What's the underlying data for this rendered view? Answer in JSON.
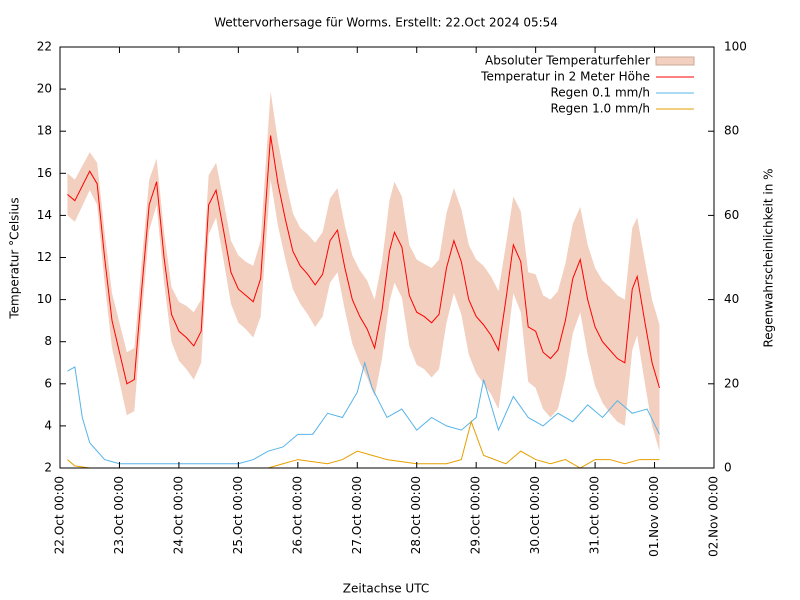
{
  "chart_data": {
    "type": "line",
    "title": "Wettervorhersage für Worms. Erstellt: 22.Oct 2024 05:54",
    "xlabel": "Zeitachse UTC",
    "ylabel": "Temperatur °Celsius",
    "y2label": "Regenwahrscheinlichkeit in %",
    "xlim": [
      "22.Oct 00:00",
      "02.Nov 00:00"
    ],
    "xticks": [
      "22.Oct 00:00",
      "23.Oct 00:00",
      "24.Oct 00:00",
      "25.Oct 00:00",
      "26.Oct 00:00",
      "27.Oct 00:00",
      "28.Oct 00:00",
      "29.Oct 00:00",
      "30.Oct 00:00",
      "31.Oct 00:00",
      "01.Nov 00:00",
      "02.Nov 00:00"
    ],
    "ylim": [
      2,
      22
    ],
    "yticks": [
      2,
      4,
      6,
      8,
      10,
      12,
      14,
      16,
      18,
      20,
      22
    ],
    "y2lim": [
      0,
      100
    ],
    "y2ticks": [
      0,
      20,
      40,
      60,
      80,
      100
    ],
    "legend": "upper right",
    "series": [
      {
        "name": "Temperatur in 2 Meter Höhe",
        "color": "#ff0000",
        "axis": "y",
        "error_name": "Absoluter Temperaturfehler",
        "error_color": "#f2cfbf",
        "x": [
          "22.Oct 03:00",
          "22.Oct 06:00",
          "22.Oct 12:00",
          "22.Oct 15:00",
          "22.Oct 18:00",
          "22.Oct 21:00",
          "23.Oct 00:00",
          "23.Oct 03:00",
          "23.Oct 06:00",
          "23.Oct 09:00",
          "23.Oct 12:00",
          "23.Oct 15:00",
          "23.Oct 18:00",
          "23.Oct 21:00",
          "24.Oct 00:00",
          "24.Oct 03:00",
          "24.Oct 06:00",
          "24.Oct 09:00",
          "24.Oct 12:00",
          "24.Oct 15:00",
          "24.Oct 18:00",
          "24.Oct 21:00",
          "25.Oct 00:00",
          "25.Oct 03:00",
          "25.Oct 06:00",
          "25.Oct 09:00",
          "25.Oct 13:00",
          "25.Oct 16:00",
          "25.Oct 19:00",
          "25.Oct 22:00",
          "26.Oct 01:00",
          "26.Oct 04:00",
          "26.Oct 07:00",
          "26.Oct 10:00",
          "26.Oct 13:00",
          "26.Oct 16:00",
          "26.Oct 19:00",
          "26.Oct 22:00",
          "27.Oct 01:00",
          "27.Oct 04:00",
          "27.Oct 07:00",
          "27.Oct 10:00",
          "27.Oct 13:00",
          "27.Oct 15:00",
          "27.Oct 18:00",
          "27.Oct 21:00",
          "28.Oct 00:00",
          "28.Oct 03:00",
          "28.Oct 06:00",
          "28.Oct 09:00",
          "28.Oct 12:00",
          "28.Oct 15:00",
          "28.Oct 18:00",
          "28.Oct 21:00",
          "29.Oct 00:00",
          "29.Oct 03:00",
          "29.Oct 06:00",
          "29.Oct 09:00",
          "29.Oct 12:00",
          "29.Oct 15:00",
          "29.Oct 18:00",
          "29.Oct 21:00",
          "30.Oct 00:00",
          "30.Oct 03:00",
          "30.Oct 06:00",
          "30.Oct 09:00",
          "30.Oct 12:00",
          "30.Oct 15:00",
          "30.Oct 18:00",
          "30.Oct 21:00",
          "31.Oct 00:00",
          "31.Oct 03:00",
          "31.Oct 06:00",
          "31.Oct 09:00",
          "31.Oct 12:00",
          "31.Oct 15:00",
          "31.Oct 17:00",
          "31.Oct 20:00",
          "31.Oct 23:00",
          "01.Nov 02:00"
        ],
        "values": [
          15.0,
          14.7,
          16.1,
          15.5,
          12.0,
          9.0,
          7.5,
          6.0,
          6.2,
          10.5,
          14.5,
          15.6,
          12.0,
          9.3,
          8.5,
          8.2,
          7.8,
          8.5,
          14.5,
          15.2,
          13.3,
          11.3,
          10.5,
          10.2,
          9.9,
          11.0,
          17.8,
          15.5,
          13.8,
          12.3,
          11.6,
          11.2,
          10.7,
          11.2,
          12.8,
          13.3,
          11.5,
          10.0,
          9.2,
          8.6,
          7.7,
          9.5,
          12.3,
          13.2,
          12.5,
          10.2,
          9.4,
          9.2,
          8.9,
          9.3,
          11.5,
          12.8,
          11.8,
          10.0,
          9.2,
          8.8,
          8.3,
          7.6,
          10.0,
          12.6,
          11.8,
          8.7,
          8.5,
          7.5,
          7.2,
          7.6,
          9.0,
          11.0,
          11.9,
          10.0,
          8.7,
          8.0,
          7.6,
          7.2,
          7.0,
          10.5,
          11.1,
          9.0,
          7.0,
          5.8
        ],
        "errors": [
          1.0,
          1.0,
          0.9,
          1.0,
          1.2,
          1.3,
          1.4,
          1.5,
          1.5,
          1.3,
          1.2,
          1.1,
          1.2,
          1.3,
          1.4,
          1.5,
          1.6,
          1.5,
          1.4,
          1.3,
          1.4,
          1.5,
          1.6,
          1.6,
          1.7,
          1.8,
          2.1,
          2.0,
          1.9,
          1.8,
          1.8,
          1.9,
          2.0,
          2.0,
          2.0,
          2.0,
          2.0,
          2.1,
          2.2,
          2.3,
          2.3,
          2.3,
          2.4,
          2.4,
          2.4,
          2.4,
          2.5,
          2.5,
          2.6,
          2.6,
          2.6,
          2.5,
          2.5,
          2.6,
          2.7,
          2.8,
          2.8,
          2.8,
          2.6,
          2.3,
          2.4,
          2.6,
          2.7,
          2.7,
          2.8,
          2.8,
          2.7,
          2.6,
          2.5,
          2.6,
          2.8,
          2.9,
          3.0,
          3.0,
          3.0,
          2.9,
          2.8,
          2.9,
          3.0,
          3.0
        ]
      },
      {
        "name": "Regen 0.1 mm/h",
        "color": "#56b4e9",
        "axis": "y2",
        "x": [
          "22.Oct 03:00",
          "22.Oct 06:00",
          "22.Oct 09:00",
          "22.Oct 12:00",
          "22.Oct 18:00",
          "23.Oct 00:00",
          "23.Oct 12:00",
          "24.Oct 00:00",
          "24.Oct 12:00",
          "25.Oct 00:00",
          "25.Oct 06:00",
          "25.Oct 12:00",
          "25.Oct 18:00",
          "26.Oct 00:00",
          "26.Oct 06:00",
          "26.Oct 12:00",
          "26.Oct 18:00",
          "27.Oct 00:00",
          "27.Oct 03:00",
          "27.Oct 06:00",
          "27.Oct 12:00",
          "27.Oct 18:00",
          "28.Oct 00:00",
          "28.Oct 06:00",
          "28.Oct 12:00",
          "28.Oct 18:00",
          "29.Oct 00:00",
          "29.Oct 03:00",
          "29.Oct 09:00",
          "29.Oct 15:00",
          "29.Oct 21:00",
          "30.Oct 03:00",
          "30.Oct 09:00",
          "30.Oct 15:00",
          "30.Oct 21:00",
          "31.Oct 03:00",
          "31.Oct 09:00",
          "31.Oct 15:00",
          "31.Oct 21:00",
          "01.Nov 02:00"
        ],
        "values": [
          23,
          24,
          12,
          6,
          2,
          1,
          1,
          1,
          1,
          1,
          2,
          4,
          5,
          8,
          8,
          13,
          12,
          18,
          25,
          19,
          12,
          14,
          9,
          12,
          10,
          9,
          12,
          21,
          9,
          17,
          12,
          10,
          13,
          11,
          15,
          12,
          16,
          13,
          14,
          8
        ]
      },
      {
        "name": "Regen 1.0 mm/h",
        "color": "#e69f00",
        "axis": "y2",
        "x": [
          "22.Oct 03:00",
          "22.Oct 06:00",
          "22.Oct 12:00",
          "25.Oct 12:00",
          "25.Oct 18:00",
          "26.Oct 00:00",
          "26.Oct 12:00",
          "26.Oct 18:00",
          "27.Oct 00:00",
          "27.Oct 06:00",
          "27.Oct 12:00",
          "28.Oct 00:00",
          "28.Oct 12:00",
          "28.Oct 18:00",
          "28.Oct 22:00",
          "29.Oct 03:00",
          "29.Oct 12:00",
          "29.Oct 18:00",
          "30.Oct 00:00",
          "30.Oct 06:00",
          "30.Oct 12:00",
          "30.Oct 18:00",
          "31.Oct 00:00",
          "31.Oct 06:00",
          "31.Oct 12:00",
          "31.Oct 18:00",
          "01.Nov 02:00"
        ],
        "values": [
          2,
          0.5,
          0,
          0,
          1,
          2,
          1,
          2,
          4,
          3,
          2,
          1,
          1,
          2,
          11,
          3,
          1,
          4,
          2,
          1,
          2,
          0,
          2,
          2,
          1,
          2,
          2
        ]
      }
    ]
  }
}
